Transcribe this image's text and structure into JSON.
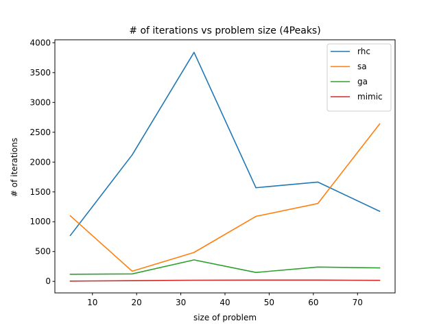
{
  "chart_data": {
    "type": "line",
    "title": "# of iterations vs problem size (4Peaks)",
    "xlabel": "size of problem",
    "ylabel": "# of iterations",
    "x": [
      5,
      19,
      33,
      47,
      61,
      75
    ],
    "xlim": [
      1.5,
      78.5
    ],
    "ylim": [
      -193,
      4050
    ],
    "xticks": [
      10,
      20,
      30,
      40,
      50,
      60,
      70
    ],
    "yticks": [
      0,
      500,
      1000,
      1500,
      2000,
      2500,
      3000,
      3500,
      4000
    ],
    "grid": false,
    "legend_position": "top-right",
    "series": [
      {
        "name": "rhc",
        "color": "#1f77b4",
        "values": [
          770,
          2120,
          3840,
          1570,
          1665,
          1175
        ]
      },
      {
        "name": "sa",
        "color": "#ff7f0e",
        "values": [
          1100,
          170,
          485,
          1090,
          1305,
          2640
        ]
      },
      {
        "name": "ga",
        "color": "#2ca02c",
        "values": [
          120,
          125,
          360,
          150,
          240,
          225
        ]
      },
      {
        "name": "mimic",
        "color": "#d62728",
        "values": [
          5,
          12,
          20,
          22,
          22,
          18
        ]
      }
    ]
  }
}
